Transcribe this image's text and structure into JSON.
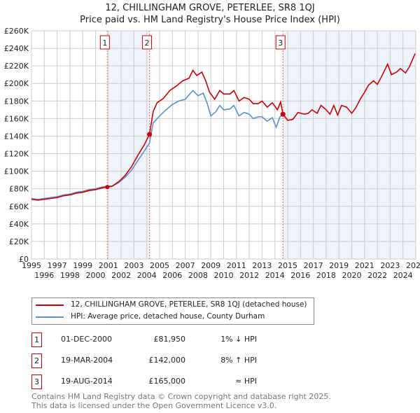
{
  "header": {
    "line1": "12, CHILLINGHAM GROVE, PETERLEE, SR8 1QJ",
    "line2": "Price paid vs. HM Land Registry's House Price Index (HPI)"
  },
  "chart_data": {
    "type": "line",
    "title": "Price paid vs. HM Land Registry's House Price Index (HPI)",
    "xlim": [
      1995,
      2025
    ],
    "ylim": [
      0,
      260000
    ],
    "xticks": [
      "1995",
      "1996",
      "1997",
      "1998",
      "1999",
      "2000",
      "2001",
      "2002",
      "2003",
      "2004",
      "2005",
      "2006",
      "2007",
      "2008",
      "2009",
      "2010",
      "2011",
      "2012",
      "2013",
      "2014",
      "2015",
      "2016",
      "2017",
      "2018",
      "2019",
      "2020",
      "2021",
      "2022",
      "2023",
      "2024",
      "2025"
    ],
    "yticks": [
      "£0",
      "£20K",
      "£40K",
      "£60K",
      "£80K",
      "£100K",
      "£120K",
      "£140K",
      "£160K",
      "£180K",
      "£200K",
      "£220K",
      "£240K",
      "£260K"
    ],
    "grid": true,
    "colors": {
      "property": "#cc0000",
      "hpi": "#5b8fd0",
      "shade": "#eef3fc",
      "marker_line": "#ff6666"
    },
    "shaded_ranges": [
      [
        2000.92,
        2004.21
      ],
      [
        2014.63,
        2025
      ]
    ],
    "series": [
      {
        "name": "12, CHILLINGHAM GROVE, PETERLEE, SR8 1QJ (detached house)",
        "points": [
          [
            1995,
            68
          ],
          [
            1995.5,
            67
          ],
          [
            1996,
            68
          ],
          [
            1996.5,
            69
          ],
          [
            1997,
            70
          ],
          [
            1997.5,
            72
          ],
          [
            1998,
            73
          ],
          [
            1998.5,
            75
          ],
          [
            1999,
            76
          ],
          [
            1999.5,
            78
          ],
          [
            2000,
            79
          ],
          [
            2000.5,
            81
          ],
          [
            2000.92,
            82
          ],
          [
            2001.3,
            83
          ],
          [
            2001.8,
            88
          ],
          [
            2002.3,
            95
          ],
          [
            2002.8,
            105
          ],
          [
            2003.3,
            118
          ],
          [
            2003.8,
            130
          ],
          [
            2004.21,
            142
          ],
          [
            2004.5,
            168
          ],
          [
            2004.8,
            178
          ],
          [
            2005.3,
            183
          ],
          [
            2005.8,
            192
          ],
          [
            2006.3,
            197
          ],
          [
            2006.8,
            203
          ],
          [
            2007.3,
            206
          ],
          [
            2007.6,
            215
          ],
          [
            2007.9,
            209
          ],
          [
            2008.3,
            213
          ],
          [
            2008.6,
            203
          ],
          [
            2008.9,
            190
          ],
          [
            2009.3,
            182
          ],
          [
            2009.7,
            192
          ],
          [
            2010,
            188
          ],
          [
            2010.5,
            188
          ],
          [
            2010.8,
            192
          ],
          [
            2011.2,
            180
          ],
          [
            2011.6,
            184
          ],
          [
            2012,
            182
          ],
          [
            2012.3,
            177
          ],
          [
            2012.7,
            177
          ],
          [
            2013,
            180
          ],
          [
            2013.4,
            173
          ],
          [
            2013.8,
            178
          ],
          [
            2014.2,
            170
          ],
          [
            2014.45,
            179
          ],
          [
            2014.63,
            165
          ],
          [
            2015,
            158
          ],
          [
            2015.4,
            159
          ],
          [
            2015.8,
            167
          ],
          [
            2016.3,
            165
          ],
          [
            2016.6,
            166
          ],
          [
            2016.9,
            170
          ],
          [
            2017.3,
            166
          ],
          [
            2017.6,
            175
          ],
          [
            2018,
            170
          ],
          [
            2018.3,
            165
          ],
          [
            2018.6,
            175
          ],
          [
            2018.9,
            164
          ],
          [
            2019.2,
            175
          ],
          [
            2019.6,
            173
          ],
          [
            2020,
            166
          ],
          [
            2020.3,
            172
          ],
          [
            2020.7,
            183
          ],
          [
            2021,
            190
          ],
          [
            2021.3,
            198
          ],
          [
            2021.7,
            203
          ],
          [
            2022,
            199
          ],
          [
            2022.4,
            210
          ],
          [
            2022.8,
            222
          ],
          [
            2023.1,
            210
          ],
          [
            2023.5,
            213
          ],
          [
            2023.8,
            217
          ],
          [
            2024.2,
            212
          ],
          [
            2024.5,
            219
          ],
          [
            2024.95,
            234
          ]
        ]
      },
      {
        "name": "HPI: Average price, detached house, County Durham",
        "points": [
          [
            1995,
            69
          ],
          [
            1995.5,
            68
          ],
          [
            1996,
            69
          ],
          [
            1996.5,
            70
          ],
          [
            1997,
            71
          ],
          [
            1997.5,
            73
          ],
          [
            1998,
            74
          ],
          [
            1998.5,
            76
          ],
          [
            1999,
            77
          ],
          [
            1999.5,
            79
          ],
          [
            2000,
            80
          ],
          [
            2000.5,
            82
          ],
          [
            2000.92,
            83
          ],
          [
            2001.3,
            83
          ],
          [
            2001.8,
            87
          ],
          [
            2002.3,
            93
          ],
          [
            2002.8,
            101
          ],
          [
            2003.3,
            112
          ],
          [
            2003.8,
            123
          ],
          [
            2004.21,
            132
          ],
          [
            2004.5,
            155
          ],
          [
            2005,
            163
          ],
          [
            2005.5,
            170
          ],
          [
            2006,
            176
          ],
          [
            2006.5,
            180
          ],
          [
            2007,
            182
          ],
          [
            2007.6,
            192
          ],
          [
            2008,
            186
          ],
          [
            2008.4,
            189
          ],
          [
            2008.7,
            178
          ],
          [
            2009,
            163
          ],
          [
            2009.4,
            168
          ],
          [
            2009.7,
            175
          ],
          [
            2010,
            170
          ],
          [
            2010.5,
            171
          ],
          [
            2010.8,
            175
          ],
          [
            2011.2,
            163
          ],
          [
            2011.6,
            167
          ],
          [
            2012,
            165
          ],
          [
            2012.3,
            160
          ],
          [
            2012.7,
            162
          ],
          [
            2013,
            162
          ],
          [
            2013.4,
            157
          ],
          [
            2013.8,
            161
          ],
          [
            2014.1,
            150
          ],
          [
            2014.4,
            162
          ],
          [
            2014.63,
            165
          ],
          [
            2015,
            158
          ]
        ]
      }
    ],
    "sales": [
      {
        "n": "1",
        "x": 2000.92,
        "y": 81.95
      },
      {
        "n": "2",
        "x": 2004.21,
        "y": 142
      },
      {
        "n": "3",
        "x": 2014.63,
        "y": 165
      }
    ],
    "value_units": "£ thousands"
  },
  "legend": {
    "property": "12, CHILLINGHAM GROVE, PETERLEE, SR8 1QJ (detached house)",
    "hpi": "HPI: Average price, detached house, County Durham"
  },
  "transactions": [
    {
      "num": "1",
      "date": "01-DEC-2000",
      "price": "£81,950",
      "hpi": "1% ↓ HPI"
    },
    {
      "num": "2",
      "date": "19-MAR-2004",
      "price": "£142,000",
      "hpi": "8% ↑ HPI"
    },
    {
      "num": "3",
      "date": "19-AUG-2014",
      "price": "£165,000",
      "hpi": "≈ HPI"
    }
  ],
  "footer": {
    "line1": "Contains HM Land Registry data © Crown copyright and database right 2025.",
    "line2": "This data is licensed under the Open Government Licence v3.0."
  }
}
